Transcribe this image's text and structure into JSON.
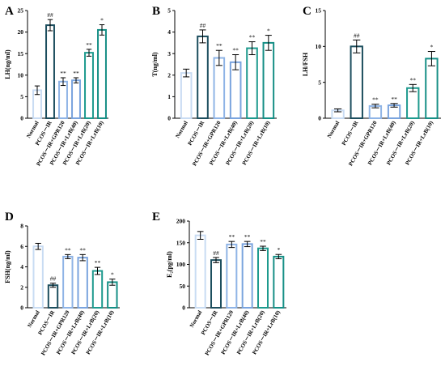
{
  "chart_data": [
    {
      "panel": "A",
      "type": "bar",
      "ylabel": "LH(ng/ml)",
      "ylim": [
        0,
        25
      ],
      "yticks": [
        0,
        5,
        10,
        15,
        20,
        25
      ],
      "categories": [
        "Normal",
        "PCOS－IR",
        "PCOS－IR+GPR120",
        "PCOS－IR+LrB(40)",
        "PCOS－IR+LrB(20)",
        "PCOS－IR+LrB(10)"
      ],
      "values": [
        6.5,
        21.6,
        8.5,
        8.8,
        15.2,
        20.5
      ],
      "errors": [
        1.0,
        1.3,
        0.9,
        0.6,
        0.8,
        1.2
      ],
      "annotations": [
        "",
        "##",
        "**",
        "**",
        "**",
        "*"
      ]
    },
    {
      "panel": "B",
      "type": "bar",
      "ylabel": "T(ng/ml)",
      "ylim": [
        0,
        5
      ],
      "yticks": [
        0,
        1,
        2,
        3,
        4,
        5
      ],
      "categories": [
        "Normal",
        "PCOS－IR",
        "PCOS－IR+GPR120",
        "PCOS－IR+LrB(40)",
        "PCOS－IR+LrB(20)",
        "PCOS－IR+LrB(10)"
      ],
      "values": [
        2.1,
        3.8,
        2.8,
        2.6,
        3.25,
        3.5
      ],
      "errors": [
        0.18,
        0.3,
        0.35,
        0.35,
        0.3,
        0.35
      ],
      "annotations": [
        "",
        "##",
        "**",
        "**",
        "**",
        "*"
      ]
    },
    {
      "panel": "C",
      "type": "bar",
      "ylabel": "LH/FSH",
      "ylim": [
        0,
        15
      ],
      "yticks": [
        0,
        5,
        10,
        15
      ],
      "categories": [
        "Normal",
        "PCOS－IR",
        "PCOS－IR+GPR120",
        "PCOS－IR+LrB(40)",
        "PCOS－IR+LrB(20)",
        "PCOS－IR+LrB(10)"
      ],
      "values": [
        1.1,
        10.0,
        1.7,
        1.8,
        4.2,
        8.3
      ],
      "errors": [
        0.2,
        0.9,
        0.25,
        0.25,
        0.5,
        1.0
      ],
      "annotations": [
        "",
        "##",
        "**",
        "**",
        "**",
        "*"
      ]
    },
    {
      "panel": "D",
      "type": "bar",
      "ylabel": "FSH(ng/ml)",
      "ylim": [
        0,
        8
      ],
      "yticks": [
        0,
        2,
        4,
        6,
        8
      ],
      "categories": [
        "Normal",
        "PCOS－IR",
        "PCOS－IR+GPR120",
        "PCOS－IR+LrB(40)",
        "PCOS－IR+LrB(20)",
        "PCOS－IR+LrB(10)"
      ],
      "values": [
        6.0,
        2.2,
        5.0,
        4.9,
        3.6,
        2.5
      ],
      "errors": [
        0.3,
        0.2,
        0.2,
        0.3,
        0.35,
        0.3
      ],
      "annotations": [
        "",
        "##",
        "**",
        "**",
        "**",
        "*"
      ]
    },
    {
      "panel": "E",
      "type": "bar",
      "ylabel": "E₂(pg/ml)",
      "ylim": [
        0,
        200
      ],
      "yticks": [
        0,
        50,
        100,
        150,
        200
      ],
      "categories": [
        "Normal",
        "PCOS－IR",
        "PCOS－IR+GPR120",
        "PCOS－IR+LrB(40)",
        "PCOS－IR+LrB(20)",
        "PCOS－IR+LrB(10)"
      ],
      "values": [
        167,
        110,
        146,
        147,
        137,
        118
      ],
      "errors": [
        9,
        6,
        7,
        6,
        5,
        5
      ],
      "annotations": [
        "",
        "##",
        "**",
        "**",
        "**",
        "*"
      ]
    }
  ],
  "colors": {
    "fills": [
      "#ffffff",
      "#ffffff",
      "#ffffff",
      "#ffffff",
      "#ffffff",
      "#ffffff"
    ],
    "edges": [
      "#c9dcf3",
      "#1c4e5e",
      "#8fb4e6",
      "#7aa4de",
      "#1e9a8e",
      "#168f86"
    ],
    "axis": "#000000"
  }
}
